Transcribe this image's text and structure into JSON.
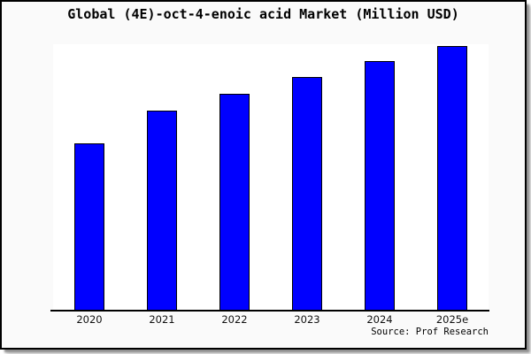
{
  "frame": {
    "background": "#fafafa",
    "border_color": "#000000",
    "shadow_color": "#8f8f8f"
  },
  "chart_data": {
    "type": "bar",
    "title": "Global (4E)-oct-4-enoic acid Market (Million USD)",
    "categories": [
      "2020",
      "2021",
      "2022",
      "2023",
      "2024",
      "2025e"
    ],
    "values": [
      63.1,
      75.5,
      81.9,
      88.3,
      94.3,
      100
    ],
    "values_are_relative": true,
    "xlabel": "",
    "ylabel": "",
    "ylim": [
      0,
      101
    ],
    "y_axis_visible": false,
    "grid": false,
    "legend": false,
    "bar_color": "#0000ff",
    "bar_edge_color": "#000000",
    "plot_background": "#ffffff",
    "source_caption": "Source: Prof Research"
  }
}
